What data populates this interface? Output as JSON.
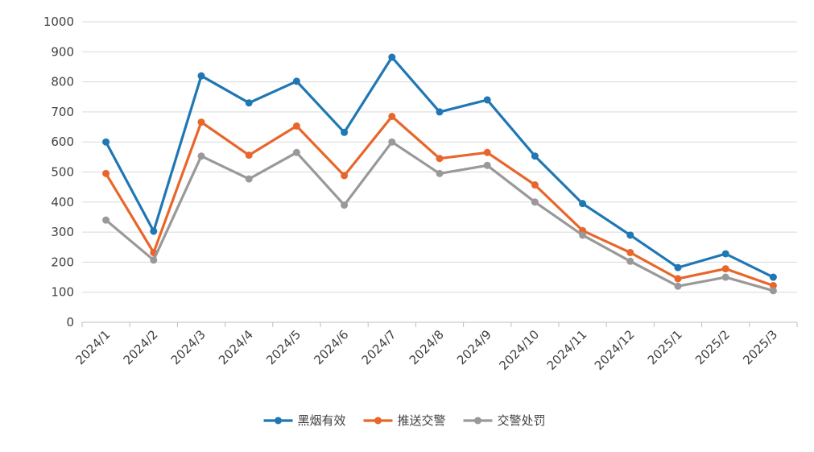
{
  "chart_data": {
    "type": "line",
    "title": "",
    "xlabel": "",
    "ylabel": "",
    "ylim": [
      0,
      1000
    ],
    "yticks": [
      0,
      100,
      200,
      300,
      400,
      500,
      600,
      700,
      800,
      900,
      1000
    ],
    "grid": true,
    "legend_position": "bottom",
    "categories": [
      "2024/1",
      "2024/2",
      "2024/3",
      "2024/4",
      "2024/5",
      "2024/6",
      "2024/7",
      "2024/8",
      "2024/9",
      "2024/10",
      "2024/11",
      "2024/12",
      "2025/1",
      "2025/2",
      "2025/3"
    ],
    "series": [
      {
        "name": "黑烟有效",
        "color": "#1f77b4",
        "values": [
          600,
          303,
          820,
          730,
          802,
          632,
          882,
          700,
          740,
          553,
          395,
          290,
          182,
          228,
          150
        ]
      },
      {
        "name": "推送交警",
        "color": "#e8662b",
        "values": [
          495,
          232,
          666,
          556,
          653,
          488,
          685,
          545,
          565,
          457,
          305,
          232,
          145,
          178,
          122
        ]
      },
      {
        "name": "交警处罚",
        "color": "#999999",
        "values": [
          340,
          207,
          553,
          477,
          565,
          390,
          600,
          495,
          522,
          400,
          290,
          203,
          120,
          150,
          105
        ]
      }
    ]
  }
}
